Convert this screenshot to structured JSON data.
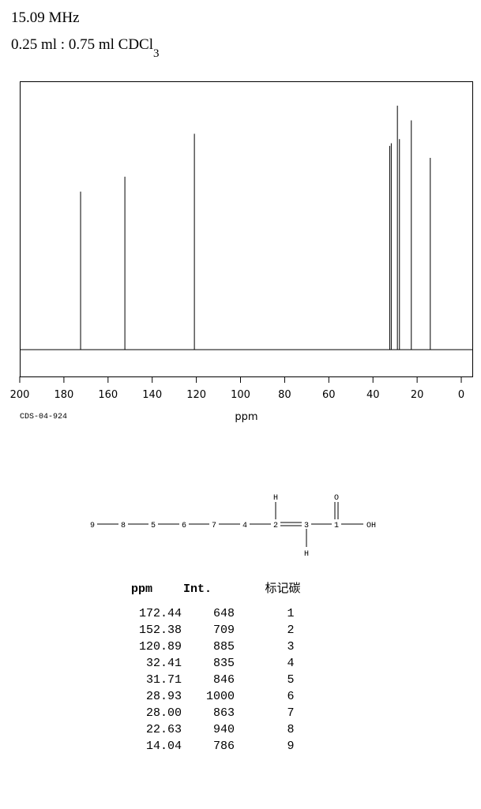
{
  "chart_data": {
    "type": "stick",
    "title": "15.09 MHz",
    "subtitle": "0.25 ml : 0.75 ml CDCl",
    "subtitle_subscript": "3",
    "x_label": "ppm",
    "annotation": "CDS-04-924",
    "x": [
      172.44,
      152.38,
      120.89,
      32.41,
      31.71,
      28.93,
      28.0,
      22.63,
      14.04
    ],
    "values": [
      648,
      709,
      885,
      835,
      846,
      1000,
      863,
      940,
      786
    ],
    "color": "#000000",
    "xlim": [
      200,
      -5
    ],
    "xticks": [
      200,
      180,
      160,
      140,
      120,
      100,
      80,
      60,
      40,
      20,
      0
    ],
    "ylim": [
      -110,
      1100
    ]
  },
  "structure": {
    "nodes": [
      {
        "label": "9"
      },
      {
        "label": "8"
      },
      {
        "label": "5"
      },
      {
        "label": "6"
      },
      {
        "label": "7"
      },
      {
        "label": "4"
      },
      {
        "label": "2"
      },
      {
        "label": "3"
      },
      {
        "label": "1"
      },
      {
        "label": "OH"
      },
      {
        "label": "H"
      },
      {
        "label": "H"
      },
      {
        "label": "O"
      }
    ]
  },
  "table": {
    "header": [
      "ppm",
      "Int.",
      "标记碳"
    ],
    "rows": [
      [
        "172.44",
        "648",
        "1"
      ],
      [
        "152.38",
        "709",
        "2"
      ],
      [
        "120.89",
        "885",
        "3"
      ],
      [
        "32.41",
        "835",
        "4"
      ],
      [
        "31.71",
        "846",
        "5"
      ],
      [
        "28.93",
        "1000",
        "6"
      ],
      [
        "28.00",
        "863",
        "7"
      ],
      [
        "22.63",
        "940",
        "8"
      ],
      [
        "14.04",
        "786",
        "9"
      ]
    ]
  }
}
